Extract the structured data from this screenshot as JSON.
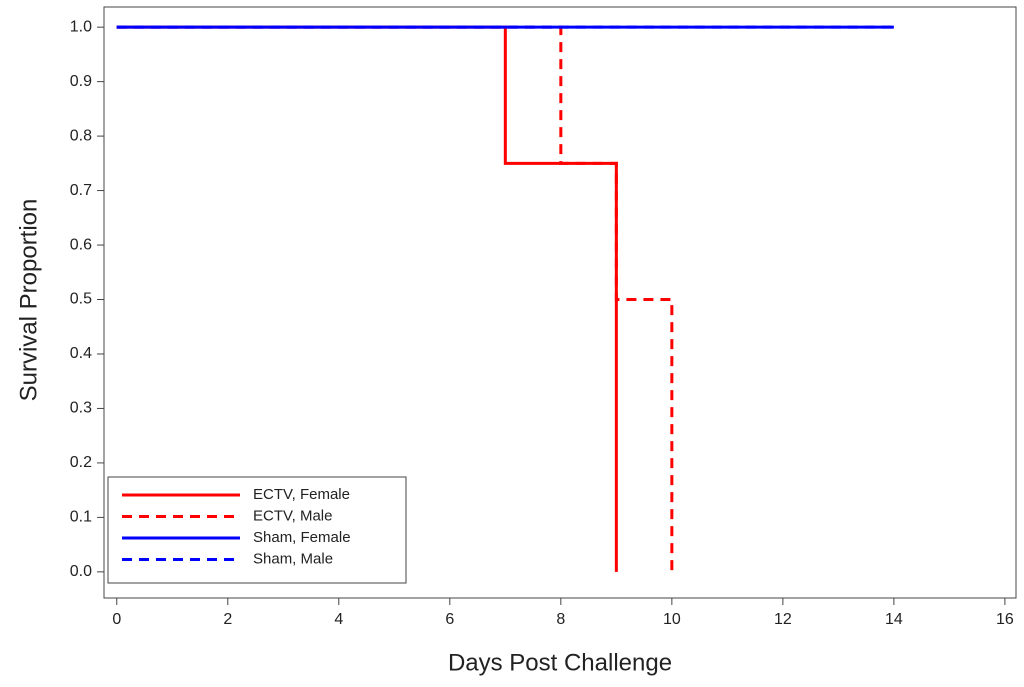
{
  "chart_data": {
    "type": "step",
    "x_label": "Days Post Challenge",
    "y_label": "Survival Proportion",
    "xlim": [
      -0.23,
      16.2
    ],
    "ylim": [
      -0.048,
      1.037
    ],
    "xticks": [
      0,
      2,
      4,
      6,
      8,
      10,
      12,
      14,
      16
    ],
    "yticks": [
      {
        "value": 0,
        "label": "0.0"
      },
      0.1,
      0.2,
      0.3,
      0.4,
      0.5,
      0.6,
      0.7,
      0.8,
      0.9,
      {
        "value": 1,
        "label": "1.0"
      }
    ],
    "legend_position": "lower left",
    "series": [
      {
        "name": "ECTV, Female",
        "color": "#ff0000",
        "dash": false,
        "x": [
          0,
          7,
          9
        ],
        "values": [
          1,
          0.75,
          0
        ]
      },
      {
        "name": "ECTV, Male",
        "color": "#ff0000",
        "dash": true,
        "x": [
          0,
          8,
          9,
          10
        ],
        "values": [
          1,
          0.75,
          0.5,
          0
        ]
      },
      {
        "name": "Sham, Female",
        "color": "#0000ff",
        "dash": false,
        "x": [
          0,
          14
        ],
        "values": [
          1,
          1
        ]
      },
      {
        "name": "Sham, Male",
        "color": "#0000ff",
        "dash": true,
        "x": [
          0,
          14
        ],
        "values": [
          1,
          1
        ]
      }
    ]
  }
}
